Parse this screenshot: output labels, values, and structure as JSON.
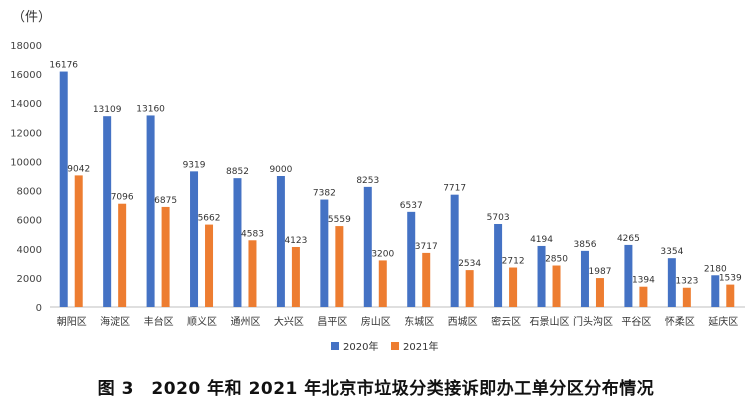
{
  "chart_data": {
    "type": "bar",
    "unit_label": "（件）",
    "caption": "图 3　2020 年和 2021 年北京市垃圾分类接诉即办工单分区分布情况",
    "categories": [
      "朝阳区",
      "海淀区",
      "丰台区",
      "顺义区",
      "通州区",
      "大兴区",
      "昌平区",
      "房山区",
      "东城区",
      "西城区",
      "密云区",
      "石景山区",
      "门头沟区",
      "平谷区",
      "怀柔区",
      "延庆区"
    ],
    "series": [
      {
        "name": "2020年",
        "color": "#4472C4",
        "values": [
          16176,
          13109,
          13160,
          9319,
          8852,
          9000,
          7382,
          8253,
          6537,
          7717,
          5703,
          4194,
          3856,
          4265,
          3354,
          2180
        ]
      },
      {
        "name": "2021年",
        "color": "#ED7D31",
        "values": [
          9042,
          7096,
          6875,
          5662,
          4583,
          4123,
          5559,
          3200,
          3717,
          2534,
          2712,
          2850,
          1987,
          1394,
          1323,
          1539
        ]
      }
    ],
    "ylim": [
      0,
      18000
    ],
    "yticks": [
      0,
      2000,
      4000,
      6000,
      8000,
      10000,
      12000,
      14000,
      16000,
      18000
    ],
    "grid": false,
    "legend_position": "bottom"
  }
}
